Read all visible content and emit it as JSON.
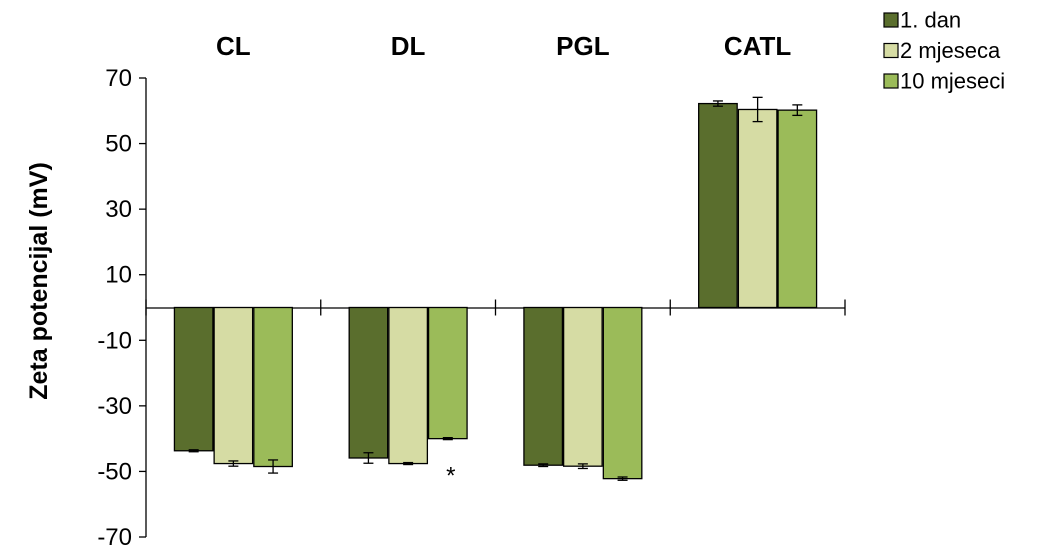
{
  "chart_data": {
    "type": "bar",
    "categories": [
      "CL",
      "DL",
      "PGL",
      "CATL"
    ],
    "ylabel": "Zeta potencijal (mV)",
    "xlabel": "",
    "ylim": [
      -70,
      70
    ],
    "yticks": [
      70,
      50,
      30,
      10,
      -10,
      -30,
      -50,
      -70
    ],
    "ytick_labels": [
      "70",
      "50",
      "30",
      "10",
      "-10",
      "-30",
      "-50",
      "-70"
    ],
    "grid": false,
    "legend_position": "top-right",
    "category_label_position": "top",
    "series": [
      {
        "name": "1. dan",
        "color": "#5a6e2d",
        "values": [
          -43.7,
          -45.9,
          -48.1,
          62.2
        ],
        "errors": [
          0.3,
          1.6,
          0.4,
          0.8
        ]
      },
      {
        "name": "2 mjeseca",
        "color": "#d6dca4",
        "values": [
          -47.6,
          -47.6,
          -48.4,
          60.4
        ],
        "errors": [
          0.8,
          0.3,
          0.7,
          3.7
        ]
      },
      {
        "name": "10 mjeseci",
        "color": "#9bbb59",
        "values": [
          -48.5,
          -40.0,
          -52.2,
          60.2
        ],
        "errors": [
          2.0,
          0.3,
          0.5,
          1.6
        ]
      }
    ],
    "annotations": [
      {
        "text": "*",
        "category": "DL",
        "series": "10 mjeseci"
      }
    ]
  }
}
